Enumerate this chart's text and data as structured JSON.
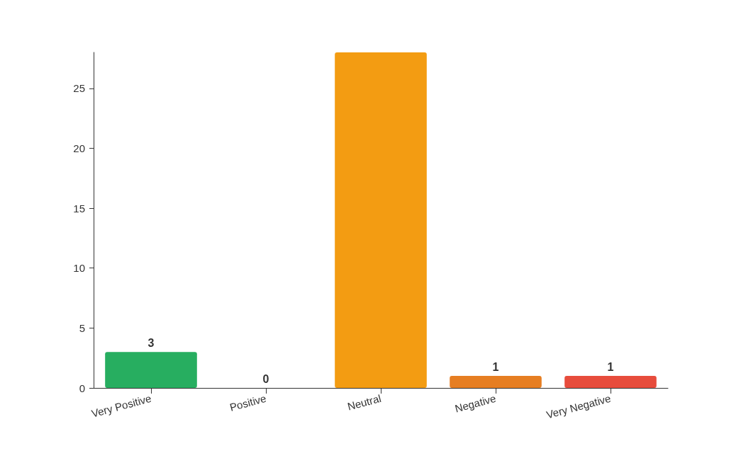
{
  "chart_data": {
    "type": "bar",
    "categories": [
      "Very Positive",
      "Positive",
      "Neutral",
      "Negative",
      "Very Negative"
    ],
    "values": [
      3,
      0,
      28,
      1,
      1
    ],
    "colors": [
      "#27ae60",
      "#27ae60",
      "#f39c12",
      "#e67e22",
      "#e74c3c"
    ],
    "value_labels": [
      "3",
      "0",
      null,
      "1",
      "1"
    ],
    "ylim": [
      0,
      28
    ],
    "yticks": [
      0,
      5,
      10,
      15,
      20,
      25
    ],
    "grid": false
  }
}
